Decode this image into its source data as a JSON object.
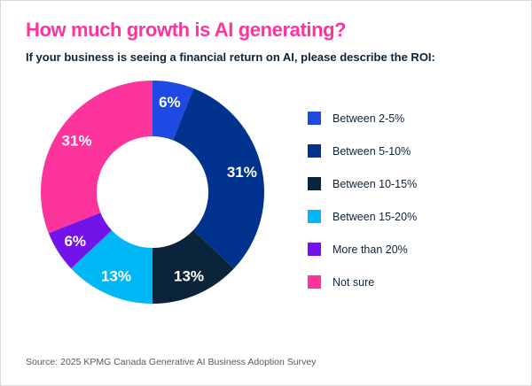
{
  "header": {
    "title": "How much growth is AI generating?",
    "subtitle": "If your business is seeing a financial return on AI, please describe the ROI:"
  },
  "chart_data": {
    "type": "pie",
    "subtype": "donut",
    "title": "How much growth is AI generating?",
    "value_suffix": "%",
    "start_angle_deg": 0,
    "direction": "clockwise",
    "inner_radius_ratio": 0.5,
    "legend_position": "right",
    "slices": [
      {
        "label": "Between 2-5%",
        "value": 6,
        "color": "#1e49e2"
      },
      {
        "label": "Between 5-10%",
        "value": 31,
        "color": "#00338d"
      },
      {
        "label": "Between 10-15%",
        "value": 13,
        "color": "#0c233c"
      },
      {
        "label": "Between 15-20%",
        "value": 13,
        "color": "#00b8f5"
      },
      {
        "label": "More than 20%",
        "value": 6,
        "color": "#7213ea"
      },
      {
        "label": "Not sure",
        "value": 31,
        "color": "#fd349c"
      }
    ]
  },
  "footer": {
    "source": "Source: 2025 KPMG Canada Generative AI Business Adoption Survey"
  },
  "colors": {
    "title": "#fd349c",
    "subtitle": "#0c233c",
    "legend_text": "#0c233c",
    "slice_label": "#ffffff",
    "source_text": "#595959",
    "background": "#ffffff"
  }
}
